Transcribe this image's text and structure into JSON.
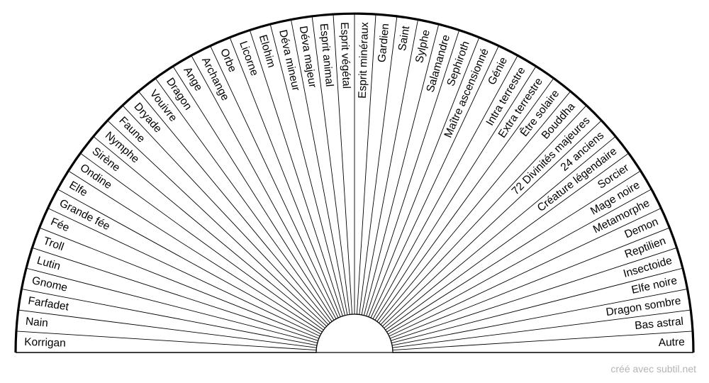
{
  "diagram": {
    "type": "semicircular-pendulum-chart",
    "outline_color": "#000000",
    "background_color": "#ffffff",
    "labels": [
      "Korrigan",
      "Nain",
      "Farfadet",
      "Gnome",
      "Lutin",
      "Troll",
      "Fée",
      "Grande fée",
      "Elfe",
      "Ondine",
      "Sirène",
      "Nymphe",
      "Faune",
      "Dryade",
      "Vouivre",
      "Dragon",
      "Ange",
      "Archange",
      "Orbe",
      "Licorne",
      "Elohim",
      "Déva mineur",
      "Déva majeur",
      "Esprit animal",
      "Esprit végétal",
      "Esprit minéraux",
      "Gardien",
      "Saint",
      "Sylphe",
      "Salamandre",
      "Sephiroth",
      "Maître ascensionné",
      "Génie",
      "Intra terrestre",
      "Extra terrestre",
      "Être solaire",
      "Bouddha",
      "72 Divinités majeures",
      "24 anciens",
      "Créature légendaire",
      "Sorcier",
      "Mage noire",
      "Metamorphe",
      "Demon",
      "Reptilien",
      "Insectoide",
      "Elfe noire",
      "Dragon sombre",
      "Bas astral",
      "Autre"
    ]
  },
  "footer": {
    "credit": "créé avec subtil.net",
    "credit_color": "#b4b4b4"
  }
}
